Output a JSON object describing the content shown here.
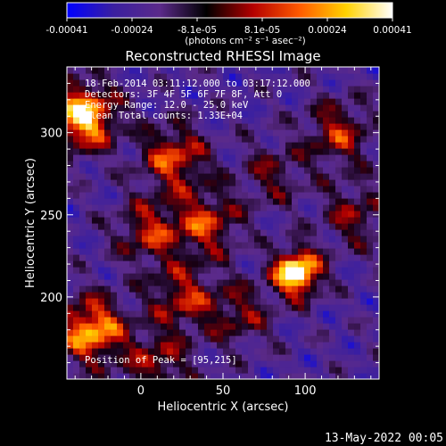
{
  "chart_data": {
    "type": "heatmap",
    "title": "Reconstructed RHESSI Image",
    "xlabel": "Heliocentric X (arcsec)",
    "ylabel": "Heliocentric Y (arcsec)",
    "xlim": [
      -45,
      145
    ],
    "ylim": [
      150,
      340
    ],
    "xticks": [
      0,
      50,
      100
    ],
    "yticks": [
      200,
      250,
      300
    ],
    "colorbar": {
      "unit_label": "(photons cm⁻² s⁻¹ asec⁻²)",
      "range": [
        -0.00041,
        0.00041
      ],
      "ticks": [
        "-0.00041",
        "-0.00024",
        "-8.1e-05",
        "8.1e-05",
        "0.00024",
        "0.00041"
      ],
      "colors": [
        "#0000ff",
        "#3a1fa0",
        "#5b2a8a",
        "#000000",
        "#b40000",
        "#ff5a00",
        "#ffd200",
        "#ffffff"
      ]
    },
    "annotations": {
      "time": "18-Feb-2014 03:11:12.000 to 03:17:12.000",
      "detectors": "Detectors: 3F 4F 5F 6F 7F 8F, Att 0",
      "energy": "Energy Range: 12.0 - 25.0 keV",
      "clean": "Clean     Total counts: 1.33E+04",
      "peak": "Position of Peak = [95,215]"
    },
    "peak": [
      95,
      215
    ],
    "sources": [
      {
        "x": 95,
        "y": 215,
        "strength": 1.0
      },
      {
        "x": -35,
        "y": 310,
        "strength": 0.85
      },
      {
        "x": -30,
        "y": 180,
        "strength": 0.75
      },
      {
        "x": 20,
        "y": 285,
        "strength": 0.55
      },
      {
        "x": 40,
        "y": 245,
        "strength": 0.5
      },
      {
        "x": 5,
        "y": 240,
        "strength": 0.45
      },
      {
        "x": 25,
        "y": 200,
        "strength": 0.45
      },
      {
        "x": 120,
        "y": 300,
        "strength": 0.45
      },
      {
        "x": 130,
        "y": 250,
        "strength": 0.35
      },
      {
        "x": 60,
        "y": 190,
        "strength": 0.35
      },
      {
        "x": 10,
        "y": 160,
        "strength": 0.4
      },
      {
        "x": 80,
        "y": 275,
        "strength": 0.3
      }
    ]
  },
  "footer": {
    "date": "13-May-2022 00:05"
  }
}
